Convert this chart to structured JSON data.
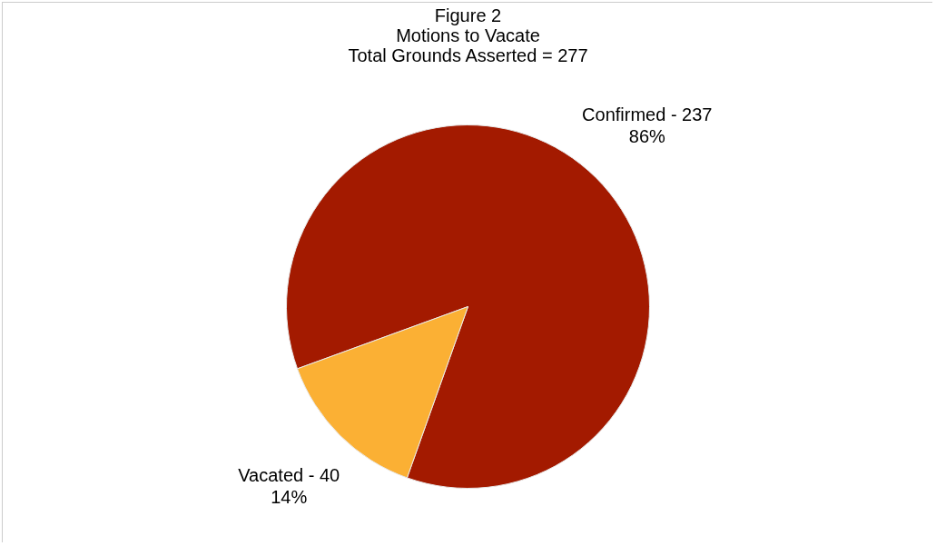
{
  "chart_data": {
    "type": "pie",
    "title": [
      "Figure 2",
      "Motions to Vacate",
      "Total Grounds Asserted = 277"
    ],
    "categories": [
      "Confirmed - 237",
      "Vacated - 40"
    ],
    "values": [
      86,
      14
    ],
    "colors": [
      "#a31a00",
      "#fbb034"
    ],
    "value_labels": [
      "86%",
      "14%"
    ],
    "legend": false
  }
}
